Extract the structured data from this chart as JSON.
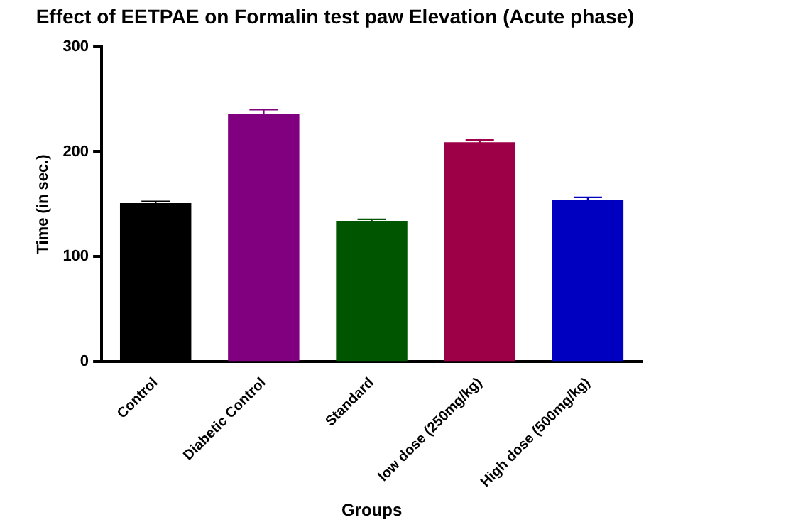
{
  "chart_data": {
    "type": "bar",
    "title": "Effect of EETPAE on Formalin test paw Elevation (Acute phase)",
    "xlabel": "Groups",
    "ylabel": "Time (in sec.)",
    "categories": [
      "Control",
      "Diabetic Control",
      "Standard",
      "low dose (250mg/kg)",
      "High dose (500mg/kg)"
    ],
    "values": [
      151,
      236,
      134,
      209,
      154
    ],
    "errors": [
      1.5,
      4,
      1.5,
      2,
      2.5
    ],
    "colors": [
      "#000000",
      "#800080",
      "#005500",
      "#9e0047",
      "#0000c0"
    ],
    "ylim": [
      0,
      300
    ],
    "yticks": [
      0,
      100,
      200,
      300
    ],
    "grid": false,
    "legend": false
  }
}
